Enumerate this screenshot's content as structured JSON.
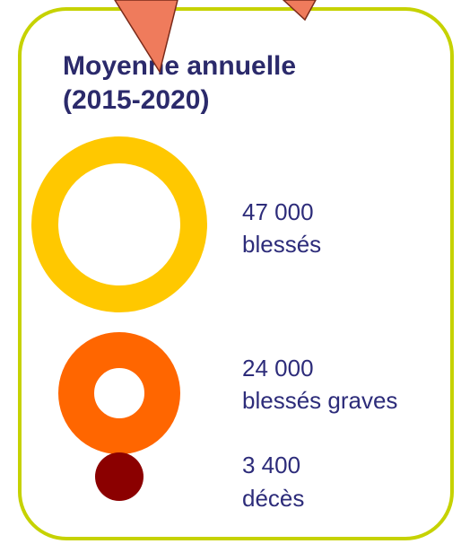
{
  "header": {
    "title": [
      "Moyenne annuelle",
      "(2015-2020)"
    ]
  },
  "items": [
    {
      "value": "47 000",
      "label": "blessés"
    },
    {
      "value": "24 000",
      "label": "blessés graves"
    },
    {
      "value": "3 400",
      "label": "décès"
    }
  ]
}
